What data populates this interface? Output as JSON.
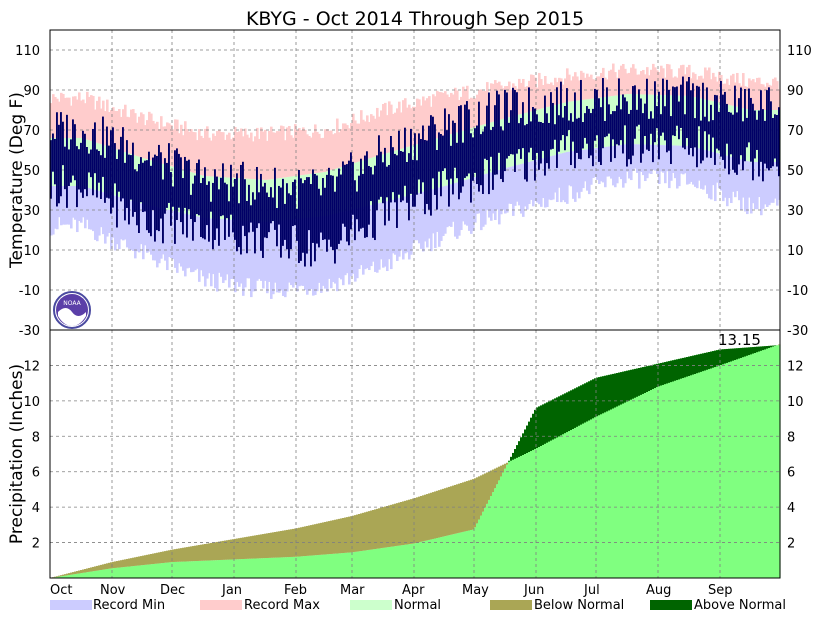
{
  "chart_data": [
    {
      "type": "area",
      "title": "KBYG - Oct 2014 Through Sep 2015",
      "ylabel": "Temperature (Deg F)",
      "ylim": [
        -30,
        120
      ],
      "yticks": [
        -30,
        -10,
        10,
        30,
        50,
        70,
        90,
        110
      ],
      "months": [
        "Oct",
        "Nov",
        "Dec",
        "Jan",
        "Feb",
        "Mar",
        "Apr",
        "May",
        "Jun",
        "Jul",
        "Aug",
        "Sep"
      ],
      "grid": true,
      "series": [
        {
          "name": "Record Max",
          "color": "#ffcccc",
          "monthly_values": [
            86,
            76,
            68,
            68,
            70,
            80,
            87,
            92,
            97,
            100,
            99,
            94
          ]
        },
        {
          "name": "Normal",
          "color": "#ccffcc",
          "monthly_high": [
            66,
            56,
            47,
            45,
            49,
            58,
            67,
            76,
            84,
            88,
            87,
            80
          ],
          "monthly_low": [
            42,
            33,
            26,
            24,
            27,
            34,
            42,
            51,
            59,
            63,
            62,
            54
          ]
        },
        {
          "name": "Record Min",
          "color": "#ccccff",
          "monthly_values": [
            22,
            8,
            -5,
            -10,
            -8,
            2,
            18,
            28,
            38,
            46,
            44,
            32
          ]
        },
        {
          "name": "observed",
          "color": "#000066",
          "monthly_high": [
            70,
            58,
            45,
            42,
            40,
            58,
            72,
            80,
            84,
            86,
            86,
            82
          ],
          "monthly_low": [
            42,
            25,
            22,
            15,
            10,
            28,
            40,
            50,
            60,
            62,
            62,
            55
          ]
        }
      ]
    },
    {
      "type": "area",
      "ylabel": "Precipitation (Inches)",
      "ylim": [
        0,
        14
      ],
      "yticks": [
        2,
        4,
        6,
        8,
        10,
        12
      ],
      "months": [
        "Oct",
        "Nov",
        "Dec",
        "Jan",
        "Feb",
        "Mar",
        "Apr",
        "May",
        "Jun",
        "Jul",
        "Aug",
        "Sep"
      ],
      "grid": true,
      "annotation": "13.15",
      "series": [
        {
          "name": "Normal",
          "color": "#80ff80",
          "month_start_values": [
            0.0,
            0.9,
            1.6,
            2.2,
            2.8,
            3.5,
            4.5,
            5.6,
            7.3,
            9.1,
            10.8,
            12.0,
            13.2
          ]
        },
        {
          "name": "Observed",
          "color": "#000066",
          "month_start_values": [
            0.0,
            0.55,
            0.9,
            1.05,
            1.2,
            1.45,
            1.95,
            2.75,
            9.6,
            11.3,
            12.1,
            12.9,
            13.15
          ]
        },
        {
          "name": "Below Normal",
          "color": "#aaa655"
        },
        {
          "name": "Above Normal",
          "color": "#006400"
        }
      ]
    }
  ],
  "legend": [
    {
      "label": "Record Min",
      "color": "#ccccff"
    },
    {
      "label": "Record Max",
      "color": "#ffcccc"
    },
    {
      "label": "Normal",
      "color": "#ccffcc"
    },
    {
      "label": "Below Normal",
      "color": "#aaa655"
    },
    {
      "label": "Above Normal",
      "color": "#006400"
    }
  ],
  "logo": {
    "icon": "noaa-logo",
    "text": "NOAA"
  }
}
